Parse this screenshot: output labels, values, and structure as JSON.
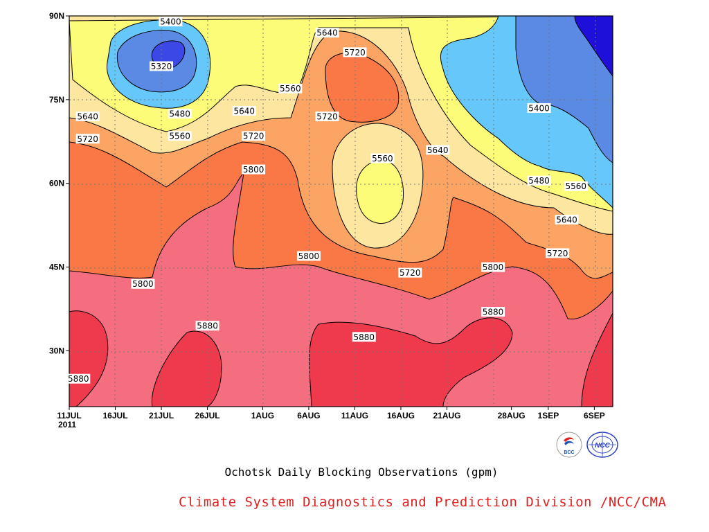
{
  "chart_data": {
    "type": "contour",
    "title": "Ochotsk Daily Blocking Observations (gpm)",
    "credit": "Climate System Diagnostics and Prediction Division /NCC/CMA",
    "x_ticks": [
      "11JUL",
      "16JUL",
      "21JUL",
      "26JUL",
      "1AUG",
      "6AUG",
      "11AUG",
      "16AUG",
      "21AUG",
      "28AUG",
      "1SEP",
      "6SEP"
    ],
    "x_year": "2011",
    "y_ticks": [
      "30N",
      "45N",
      "60N",
      "75N",
      "90N"
    ],
    "y_values": [
      30,
      45,
      60,
      75,
      90
    ],
    "ylim": [
      20,
      90
    ],
    "xlim": [
      "2011-07-11",
      "2011-09-08"
    ],
    "grid": true,
    "contour_levels": [
      5320,
      5400,
      5480,
      5560,
      5640,
      5720,
      5800,
      5880
    ],
    "fill_colors": {
      "below_5320": "#1e10d8",
      "5320_5400": "#5a8ae4",
      "5400_5480": "#66c8fa",
      "5480_5560": "#fcfc78",
      "5560_5640": "#fde6a0",
      "5640_5720": "#fba464",
      "5720_5800": "#fa7846",
      "5800_5880": "#f46e80",
      "above_5880": "#ef3a4e"
    },
    "contour_labels": [
      {
        "text": "5400",
        "date": "2011-07-22",
        "lat": 89
      },
      {
        "text": "5320",
        "date": "2011-07-21",
        "lat": 81
      },
      {
        "text": "5480",
        "date": "2011-07-23",
        "lat": 72.5
      },
      {
        "text": "5560",
        "date": "2011-07-23",
        "lat": 68.5
      },
      {
        "text": "5640",
        "date": "2011-07-13",
        "lat": 72
      },
      {
        "text": "5720",
        "date": "2011-07-13",
        "lat": 68
      },
      {
        "text": "5640",
        "date": "2011-08-08",
        "lat": 87
      },
      {
        "text": "5720",
        "date": "2011-08-11",
        "lat": 83.5
      },
      {
        "text": "5560",
        "date": "2011-08-04",
        "lat": 77
      },
      {
        "text": "5640",
        "date": "2011-07-30",
        "lat": 73
      },
      {
        "text": "5720",
        "date": "2011-08-08",
        "lat": 72
      },
      {
        "text": "5720",
        "date": "2011-07-31",
        "lat": 68.5
      },
      {
        "text": "5800",
        "date": "2011-07-31",
        "lat": 62.5
      },
      {
        "text": "5560",
        "date": "2011-08-14",
        "lat": 64.5
      },
      {
        "text": "5640",
        "date": "2011-08-20",
        "lat": 66
      },
      {
        "text": "5400",
        "date": "2011-08-31",
        "lat": 73.5
      },
      {
        "text": "5480",
        "date": "2011-08-31",
        "lat": 60.5
      },
      {
        "text": "5560",
        "date": "2011-09-04",
        "lat": 59.5
      },
      {
        "text": "5640",
        "date": "2011-09-03",
        "lat": 53.5
      },
      {
        "text": "5720",
        "date": "2011-09-02",
        "lat": 47.5
      },
      {
        "text": "5800",
        "date": "2011-08-06",
        "lat": 47
      },
      {
        "text": "5720",
        "date": "2011-08-17",
        "lat": 44
      },
      {
        "text": "5800",
        "date": "2011-08-26",
        "lat": 45
      },
      {
        "text": "5800",
        "date": "2011-07-19",
        "lat": 42
      },
      {
        "text": "5880",
        "date": "2011-07-26",
        "lat": 34.5
      },
      {
        "text": "5880",
        "date": "2011-08-12",
        "lat": 32.5
      },
      {
        "text": "5880",
        "date": "2011-08-26",
        "lat": 37
      },
      {
        "text": "5880",
        "date": "2011-07-12",
        "lat": 25
      }
    ]
  },
  "logos": [
    {
      "name": "bcc-logo",
      "text": "BCC"
    },
    {
      "name": "ncc-logo",
      "text": "NCC"
    }
  ]
}
